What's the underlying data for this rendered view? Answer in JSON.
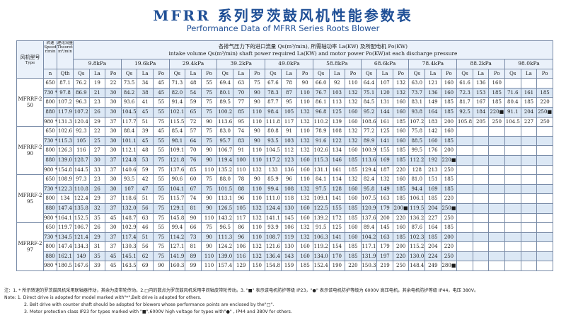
{
  "title_cn": "MFRR 系列罗茨鼓风机性能参数表",
  "title_en": "Performance Data of MFRR Series Roots Blower",
  "header": {
    "model_cn": "风机型号",
    "model_en": "Type",
    "speed_cn": "转速",
    "speed_en": "Speed",
    "theory_cn": "理论流量",
    "theory_en": "Theoretical capacity",
    "desc_cn": "各排气压力下的进口流量 Qs(m³/min), 所需轴功率 La(KW) 及所配电机 Po(KW)",
    "desc_en": "intake volume Qs(m³/min) shaft power required La(KW) and motor power Po(KW)at each discharge pressure",
    "unit_speed": "r/min",
    "unit_theory": "m³/min",
    "sym_n": "n",
    "sym_qth": "Qth",
    "cols": [
      "Qs",
      "La",
      "Po"
    ],
    "pressures": [
      "9.8kPa",
      "19.6kPa",
      "29.4kPa",
      "39.2kPa",
      "49.0kPa",
      "58.8kPa",
      "68.6kPa",
      "78.4kPa",
      "88.2kPa",
      "98.0kPa"
    ]
  },
  "groups": [
    {
      "model": "MFRRF-250",
      "rows": [
        {
          "n": "650",
          "qth": "87.1",
          "v": [
            "76.2",
            "19",
            "22",
            "73.5",
            "34",
            "45",
            "71.3",
            "48",
            "55",
            "69.4",
            "63",
            "75",
            "67.6",
            "78",
            "90",
            "66.0",
            "92",
            "110",
            "64.4",
            "107",
            "132",
            "63.0",
            "121",
            "160",
            "61.6",
            "136",
            "160",
            "",
            "",
            ""
          ]
        },
        {
          "n": "730 *",
          "qth": "97.8",
          "v": [
            "86.9",
            "21",
            "30",
            "84.2",
            "38",
            "45",
            "82.0",
            "54",
            "75",
            "80.1",
            "70",
            "90",
            "78.3",
            "87",
            "110",
            "76.7",
            "103",
            "132",
            "75.1",
            "120",
            "132",
            "73.7",
            "136",
            "160",
            "72.3",
            "153",
            "185",
            "71.6",
            "161",
            "185"
          ]
        },
        {
          "n": "800",
          "qth": "107.2",
          "v": [
            "96.3",
            "23",
            "30",
            "93.6",
            "41",
            "55",
            "91.4",
            "59",
            "75",
            "89.5",
            "77",
            "90",
            "87.7",
            "95",
            "110",
            "86.1",
            "113",
            "132",
            "84.5",
            "131",
            "160",
            "83.1",
            "149",
            "185",
            "81.7",
            "167",
            "185",
            "80.4",
            "185",
            "220"
          ]
        },
        {
          "n": "880",
          "qth": "117.9",
          "v": [
            "107.2",
            "26",
            "30",
            "104.5",
            "45",
            "55",
            "102.1",
            "65",
            "75",
            "100.2",
            "85",
            "110",
            "98.4",
            "105",
            "132",
            "96.8",
            "125",
            "160",
            "95.2",
            "144",
            "160",
            "93.8",
            "164",
            "185",
            "92.5",
            "184",
            "220■",
            "91.1",
            "204",
            "250■"
          ]
        },
        {
          "n": "980 *",
          "qth": "131.3",
          "v": [
            "120.4",
            "29",
            "37",
            "117.7",
            "51",
            "75",
            "115.5",
            "72",
            "90",
            "113.6",
            "95",
            "110",
            "111.8",
            "117",
            "132",
            "110.2",
            "139",
            "160",
            "108.6",
            "161",
            "185",
            "107.2",
            "183",
            "200",
            "105.8",
            "205",
            "250",
            "104.5",
            "227",
            "250"
          ]
        }
      ]
    },
    {
      "model": "MFRRF-290",
      "rows": [
        {
          "n": "650",
          "qth": "102.6",
          "v": [
            "92.3",
            "22",
            "30",
            "88.4",
            "39",
            "45",
            "85.4",
            "57",
            "75",
            "83.0",
            "74",
            "90",
            "80.8",
            "91",
            "110",
            "78.9",
            "108",
            "132",
            "77.2",
            "125",
            "160",
            "75.8",
            "142",
            "160",
            "",
            "",
            "",
            "",
            "",
            ""
          ]
        },
        {
          "n": "730 *",
          "qth": "115.3",
          "v": [
            "105",
            "25",
            "30",
            "101.1",
            "45",
            "55",
            "98.1",
            "64",
            "75",
            "95.7",
            "83",
            "90",
            "93.5",
            "103",
            "132",
            "91.6",
            "122",
            "132",
            "89.9",
            "141",
            "160",
            "88.5",
            "160",
            "185",
            "",
            "",
            "",
            "",
            "",
            ""
          ]
        },
        {
          "n": "800",
          "qth": "126.3",
          "v": [
            "116",
            "27",
            "30",
            "112.1",
            "48",
            "55",
            "109.1",
            "70",
            "90",
            "106.7",
            "91",
            "110",
            "104.5",
            "112",
            "132",
            "102.6",
            "134",
            "160",
            "100.9",
            "155",
            "185",
            "99.5",
            "176",
            "200",
            "",
            "",
            "",
            "",
            "",
            ""
          ]
        },
        {
          "n": "880",
          "qth": "139.0",
          "v": [
            "128.7",
            "30",
            "37",
            "124.8",
            "53",
            "75",
            "121.8",
            "76",
            "90",
            "119.4",
            "100",
            "110",
            "117.2",
            "123",
            "160",
            "115.3",
            "146",
            "185",
            "113.6",
            "169",
            "185",
            "112.2",
            "192",
            "220■",
            "",
            "",
            "",
            "",
            "",
            ""
          ]
        },
        {
          "n": "980 *",
          "qth": "154.8",
          "v": [
            "144.5",
            "33",
            "37",
            "140.6",
            "59",
            "75",
            "137.6",
            "85",
            "110",
            "135.2",
            "110",
            "132",
            "133",
            "136",
            "160",
            "131.1",
            "161",
            "185",
            "129.4",
            "187",
            "220",
            "128",
            "213",
            "250",
            "",
            "",
            "",
            "",
            "",
            ""
          ]
        }
      ]
    },
    {
      "model": "MFRRF-295",
      "rows": [
        {
          "n": "650",
          "qth": "108.9",
          "v": [
            "97.3",
            "23",
            "30",
            "93.5",
            "42",
            "55",
            "90.6",
            "60",
            "75",
            "88.0",
            "78",
            "90",
            "85.9",
            "96",
            "110",
            "84.1",
            "114",
            "132",
            "82.4",
            "132",
            "160",
            "81.0",
            "151",
            "185",
            "",
            "",
            "",
            "",
            "",
            ""
          ]
        },
        {
          "n": "730 *",
          "qth": "122.3",
          "v": [
            "110.8",
            "26",
            "30",
            "107",
            "47",
            "55",
            "104.1",
            "67",
            "75",
            "101.5",
            "88",
            "110",
            "99.4",
            "108",
            "132",
            "97.5",
            "128",
            "160",
            "95.8",
            "149",
            "185",
            "94.4",
            "169",
            "185",
            "",
            "",
            "",
            "",
            "",
            ""
          ]
        },
        {
          "n": "800",
          "qth": "134",
          "v": [
            "122.4",
            "29",
            "37",
            "118.6",
            "51",
            "75",
            "115.7",
            "74",
            "90",
            "113.1",
            "96",
            "110",
            "111.0",
            "118",
            "132",
            "109.1",
            "141",
            "160",
            "107.5",
            "163",
            "185",
            "106.1",
            "185",
            "220",
            "",
            "",
            "",
            "",
            "",
            ""
          ]
        },
        {
          "n": "880",
          "qth": "147.4",
          "v": [
            "135.8",
            "32",
            "37",
            "132.0",
            "56",
            "75",
            "129.1",
            "81",
            "90",
            "126.5",
            "105",
            "132",
            "124.4",
            "130",
            "160",
            "122.5",
            "155",
            "185",
            "120.9",
            "179",
            "200■",
            "119.5",
            "204",
            "250■",
            "",
            "",
            "",
            "",
            "",
            ""
          ]
        },
        {
          "n": "980 *",
          "qth": "164.1",
          "v": [
            "152.5",
            "35",
            "45",
            "148.7",
            "63",
            "75",
            "145.8",
            "90",
            "110",
            "143.2",
            "117",
            "132",
            "141.1",
            "145",
            "160",
            "139.2",
            "172",
            "185",
            "137.6",
            "200",
            "220",
            "136.2",
            "227",
            "250",
            "",
            "",
            "",
            "",
            "",
            ""
          ]
        }
      ]
    },
    {
      "model": "MFRRF-297",
      "rows": [
        {
          "n": "650",
          "qth": "119.7",
          "v": [
            "106.7",
            "26",
            "30",
            "102.9",
            "46",
            "55",
            "99.4",
            "66",
            "75",
            "96.5",
            "86",
            "110",
            "93.9",
            "106",
            "132",
            "91.5",
            "125",
            "160",
            "89.4",
            "145",
            "160",
            "87.6",
            "164",
            "185",
            "",
            "",
            "",
            "",
            "",
            ""
          ]
        },
        {
          "n": "730 *",
          "qth": "134.5",
          "v": [
            "121.4",
            "29",
            "37",
            "117.4",
            "51",
            "75",
            "114.2",
            "73",
            "90",
            "111.3",
            "96",
            "110",
            "108.7",
            "119",
            "132",
            "106.3",
            "141",
            "160",
            "104.2",
            "163",
            "185",
            "102.3",
            "185",
            "200",
            "",
            "",
            "",
            "",
            "",
            ""
          ]
        },
        {
          "n": "800",
          "qth": "147.4",
          "v": [
            "134.3",
            "31",
            "37",
            "130.3",
            "56",
            "75",
            "127.1",
            "81",
            "90",
            "124.2",
            "106",
            "132",
            "121.6",
            "130",
            "160",
            "119.2",
            "154",
            "185",
            "117.1",
            "179",
            "200",
            "115.2",
            "204",
            "220",
            "",
            "",
            "",
            "",
            "",
            ""
          ]
        },
        {
          "n": "880",
          "qth": "162.1",
          "v": [
            "149",
            "35",
            "45",
            "145.1",
            "62",
            "75",
            "141.9",
            "89",
            "110",
            "139.0",
            "116",
            "132",
            "136.4",
            "143",
            "160",
            "134.0",
            "170",
            "185",
            "131.9",
            "197",
            "220",
            "130.0",
            "224",
            "250",
            "",
            "",
            "",
            "",
            "",
            ""
          ]
        },
        {
          "n": "980 *",
          "qth": "180.5",
          "v": [
            "167.6",
            "39",
            "45",
            "163.5",
            "69",
            "90",
            "160.3",
            "99",
            "110",
            "157.4",
            "129",
            "150",
            "154.8",
            "159",
            "185",
            "152.4",
            "190",
            "220",
            "150.3",
            "219",
            "250",
            "148.4",
            "249",
            "280■",
            "",
            "",
            "",
            "",
            "",
            ""
          ]
        }
      ]
    }
  ],
  "notes": [
    "注：1. * 所示转速的罗茨鼓风机采用联轴器传动，其余为皮带轮传动。2.□内的数点为罗茨鼓风机采用中间轴皮带轮传动。3. \"■\" 表示该电机防护等级 IP23，\"●\" 表示该电机防护等级为 6000V 高压电机，其余电机防护等级 IP44，电压 380V。",
    "Note: 1. Direct drive is adopted for model marked with\"*\",Belt drive is adopted for others.",
    "2. Belt drive with counter shaft should be adopted for blowers whose performance points are enclosed by the\"□\".",
    "3. Motor protection class IP23 for types marked with \"■\",6000V high voltage for types with\"●\" , IP44 and 380V for others."
  ]
}
